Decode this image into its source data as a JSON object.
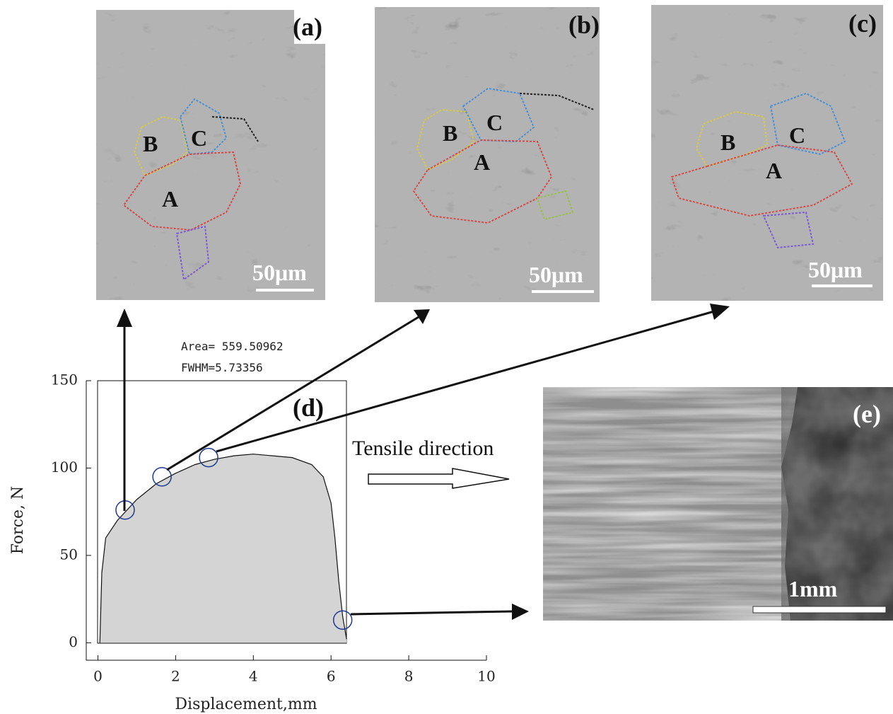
{
  "panels": [
    {
      "label": "(a)",
      "scale": "50μm",
      "grains": [
        "A",
        "B",
        "C"
      ]
    },
    {
      "label": "(b)",
      "scale": "50μm",
      "grains": [
        "A",
        "B",
        "C"
      ]
    },
    {
      "label": "(c)",
      "scale": "50μm",
      "grains": [
        "A",
        "B",
        "C"
      ]
    },
    {
      "label": "(e)",
      "scale": "1mm"
    }
  ],
  "direction_label": "Tensile direction",
  "chart_data": {
    "type": "area",
    "label": "(d)",
    "annotations": [
      "Area= 559.50962",
      "FWHM=5.73356"
    ],
    "xlabel": "Displacement,mm",
    "ylabel": "Force, N",
    "x": [
      0.05,
      0.1,
      0.2,
      0.5,
      1,
      1.5,
      2,
      2.5,
      3,
      3.5,
      4,
      4.5,
      5,
      5.5,
      5.8,
      6.0,
      6.1,
      6.2,
      6.3,
      6.4
    ],
    "values": [
      0,
      40,
      60,
      70,
      82,
      91,
      97,
      102,
      105,
      107,
      108,
      107,
      106,
      102,
      95,
      80,
      60,
      35,
      15,
      2
    ],
    "color": "#d3d4d3",
    "points": {
      "x": [
        0.7,
        1.65,
        2.85,
        6.3
      ],
      "values": [
        76,
        95,
        106,
        13
      ],
      "color": "#1f3a93"
    },
    "xlim": [
      -0.3,
      10
    ],
    "ylim": [
      -10,
      150
    ],
    "xticks": [
      0,
      2,
      4,
      6,
      8,
      10
    ],
    "yticks": [
      0,
      50,
      100,
      150
    ]
  }
}
